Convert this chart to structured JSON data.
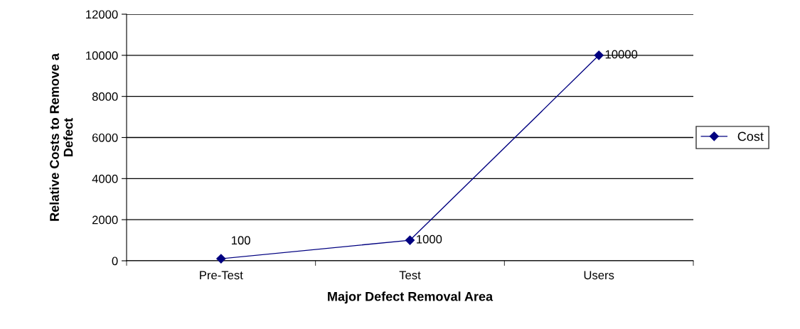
{
  "chart_data": {
    "type": "line",
    "xlabel": "Major Defect Removal Area",
    "ylabel": "Relative Costs to Remove a\nDefect",
    "categories": [
      "Pre-Test",
      "Test",
      "Users"
    ],
    "series": [
      {
        "name": "Cost",
        "color": "#000080",
        "values": [
          100,
          1000,
          10000
        ]
      }
    ],
    "ylim": [
      0,
      12000
    ],
    "yticks": [
      0,
      2000,
      4000,
      6000,
      8000,
      10000,
      12000
    ],
    "grid": "y",
    "legend": "right",
    "marker": "diamond",
    "line_style": "solid",
    "data_labels": true
  }
}
